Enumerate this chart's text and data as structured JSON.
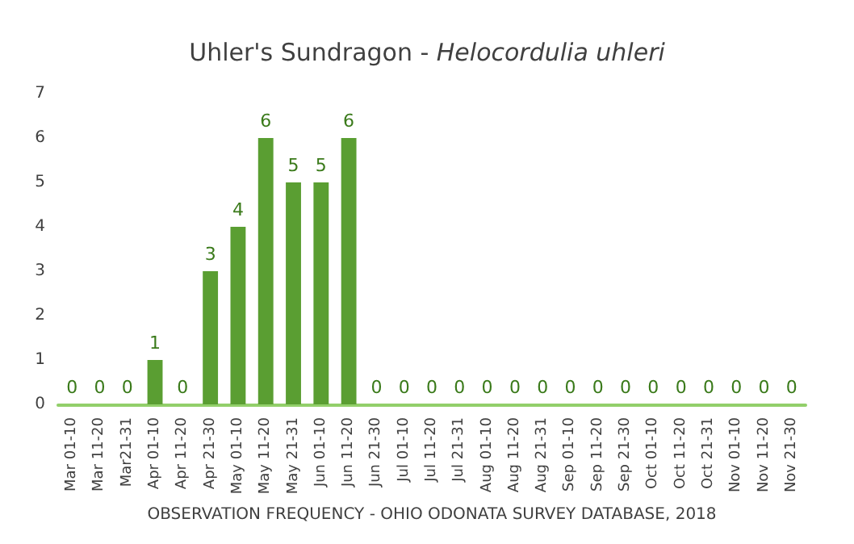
{
  "chart_data": {
    "type": "bar",
    "title": "Uhler's Sundragon - Helocordulia uhleri",
    "xlabel": "OBSERVATION FREQUENCY - OHIO ODONATA SURVEY DATABASE, 2018",
    "categories": [
      "Mar 01-10",
      "Mar 11-20",
      "Mar21-31",
      "Apr 01-10",
      "Apr 11-20",
      "Apr 21-30",
      "May 01-10",
      "May 11-20",
      "May 21-31",
      "Jun 01-10",
      "Jun 11-20",
      "Jun 21-30",
      "Jul 01-10",
      "Jul 11-20",
      "Jul 21-31",
      "Aug 01-10",
      "Aug 11-20",
      "Aug 21-31",
      "Sep 01-10",
      "Sep 11-20",
      "Sep 21-30",
      "Oct 01-10",
      "Oct 11-20",
      "Oct 21-31",
      "Nov 01-10",
      "Nov 11-20",
      "Nov 21-30"
    ],
    "values": [
      0,
      0,
      0,
      1,
      0,
      3,
      4,
      6,
      5,
      5,
      6,
      0,
      0,
      0,
      0,
      0,
      0,
      0,
      0,
      0,
      0,
      0,
      0,
      0,
      0,
      0,
      0
    ],
    "color": "#5a9e32",
    "ylim": [
      0,
      7
    ],
    "yticks": [
      0,
      1,
      2,
      3,
      4,
      5,
      6,
      7
    ],
    "data_labels": true
  }
}
